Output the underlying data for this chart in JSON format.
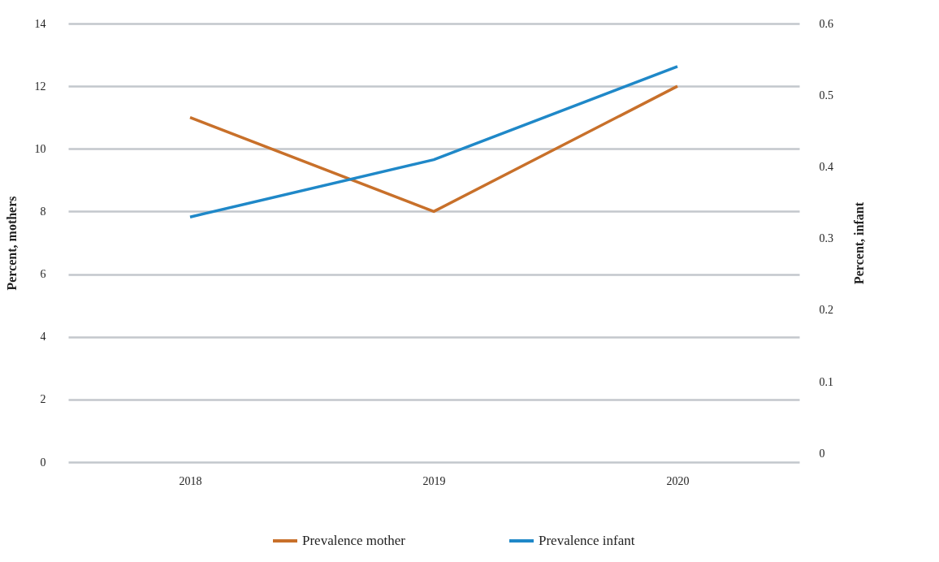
{
  "chart_data": {
    "type": "line",
    "categories": [
      "2018",
      "2019",
      "2020"
    ],
    "series": [
      {
        "name": "Prevalence mother",
        "color": "#c8702a",
        "values": [
          11,
          8,
          12
        ]
      },
      {
        "name": "Prevalence infant",
        "color": "#1f88c8",
        "values": [
          0.33,
          0.41,
          0.54
        ],
        "axis": "y2"
      }
    ],
    "ylabel": "Percent, mothers",
    "y2label": "Percent, infant",
    "ylim": [
      0,
      14
    ],
    "yticks": [
      0,
      2,
      4,
      6,
      8,
      10,
      12,
      14
    ],
    "y2lim": [
      -0.012,
      0.6
    ],
    "y2ticks": [
      0,
      0.1,
      0.2,
      0.3,
      0.4,
      0.5,
      0.6
    ],
    "grid": "y",
    "legend": "bottom"
  }
}
